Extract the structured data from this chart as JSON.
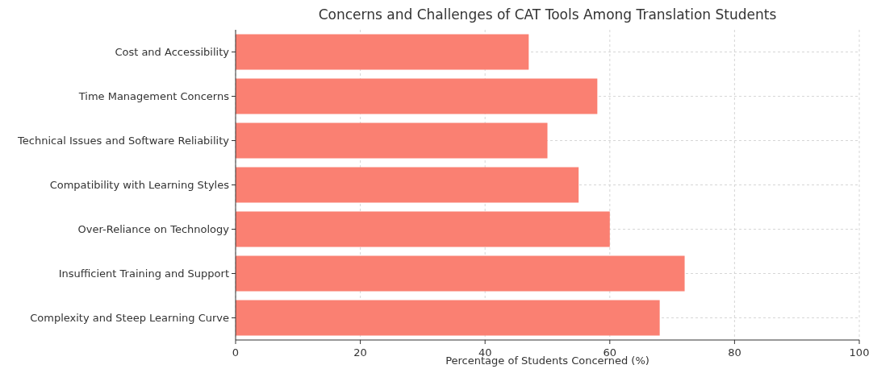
{
  "chart_data": {
    "type": "bar",
    "orientation": "horizontal",
    "title": "Concerns and Challenges of CAT Tools Among Translation Students",
    "xlabel": "Percentage of Students Concerned (%)",
    "categories": [
      "Cost and Accessibility",
      "Time Management Concerns",
      "Technical Issues and Software Reliability",
      "Compatibility with Learning Styles",
      "Over-Reliance on Technology",
      "Insufficient Training and Support",
      "Complexity and Steep Learning Curve"
    ],
    "values": [
      47,
      58,
      50,
      55,
      60,
      72,
      68
    ],
    "color": "#fa8072",
    "xlim": [
      0,
      100
    ],
    "xticks": [
      0,
      20,
      40,
      60,
      80,
      100
    ],
    "grid": true
  }
}
